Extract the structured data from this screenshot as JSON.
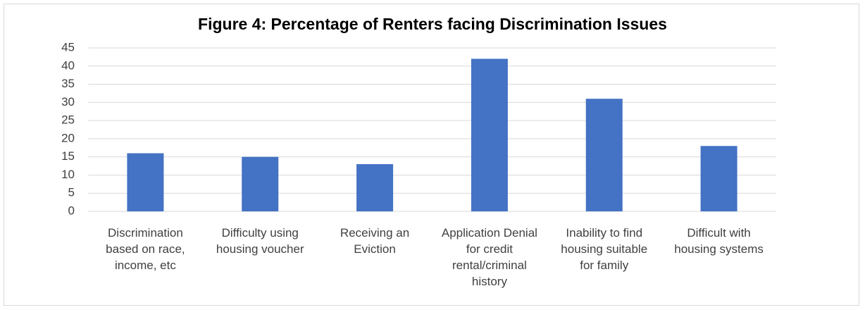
{
  "chart_data": {
    "type": "bar",
    "title": "Figure 4: Percentage of Renters facing Discrimination Issues",
    "categories": [
      "Discrimination based on race, income, etc",
      "Difficulty using housing voucher",
      "Receiving an Eviction",
      "Application Denial for credit rental/criminal history",
      "Inability to find housing suitable for family",
      "Difficult with housing systems"
    ],
    "values": [
      16,
      15,
      13,
      42,
      31,
      18
    ],
    "color": "#4472c4",
    "ylim": [
      0,
      45
    ],
    "yticks": [
      0,
      5,
      10,
      15,
      20,
      25,
      30,
      35,
      40,
      45
    ],
    "grid": true
  }
}
